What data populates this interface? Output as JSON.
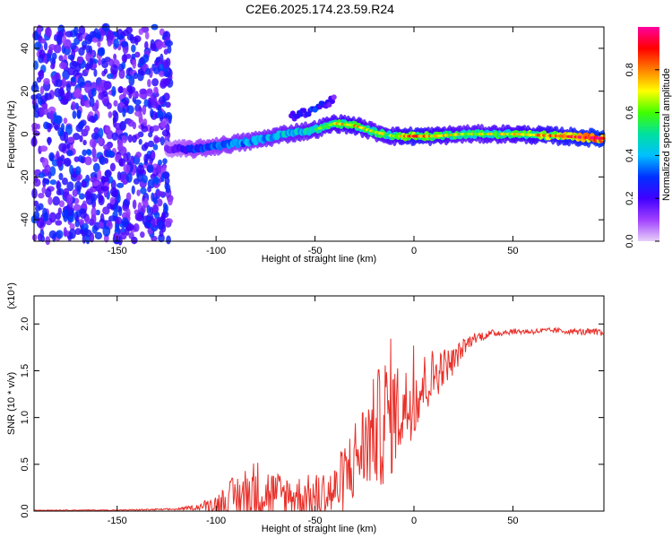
{
  "title": "C2E6.2025.174.23.59.R24",
  "chart_data": [
    {
      "type": "heatmap",
      "xlabel": "Height of straight line (km)",
      "ylabel": "Frequency (Hz)",
      "xlim": [
        -192,
        96
      ],
      "ylim": [
        -50,
        50
      ],
      "xticks": [
        -150,
        -100,
        -50,
        0,
        50
      ],
      "yticks": [
        -40,
        -20,
        0,
        20,
        40
      ],
      "colorbar": {
        "label": "Normalized spectral amplitude",
        "range": [
          0.0,
          1.0
        ],
        "ticks": [
          "0.0",
          "0.2",
          "0.4",
          "0.6",
          "0.8"
        ],
        "colors": [
          "#e8d0f8",
          "#a040ff",
          "#4000ff",
          "#0030ff",
          "#00c0ff",
          "#00e0a0",
          "#40ff00",
          "#ffff00",
          "#ff8000",
          "#ff0000",
          "#ff00a0"
        ]
      },
      "ridge": {
        "x": [
          -125,
          -110,
          -95,
          -80,
          -65,
          -50,
          -40,
          -30,
          -20,
          -10,
          0,
          10,
          25,
          50,
          75,
          95
        ],
        "y": [
          -7,
          -7,
          -5,
          -3,
          0,
          2,
          5,
          4,
          1,
          -1,
          -1,
          -1,
          0,
          0,
          -1,
          -2
        ],
        "amplitude": [
          0.15,
          0.3,
          0.35,
          0.4,
          0.45,
          0.5,
          0.55,
          0.6,
          0.5,
          0.55,
          0.7,
          0.6,
          0.5,
          0.55,
          0.7,
          0.85
        ]
      },
      "secondary_ridge": {
        "x": [
          -62,
          -55,
          -50,
          -45,
          -40
        ],
        "y": [
          8,
          10,
          12,
          14,
          16
        ],
        "amplitude": [
          0.2,
          0.25,
          0.3,
          0.25,
          0.2
        ]
      },
      "noise_region": {
        "x": [
          -192,
          -115
        ],
        "density": "high"
      }
    },
    {
      "type": "line",
      "xlabel": "Height of straight line (km)",
      "ylabel": "SNR (10 * v/v)",
      "y_multiplier": "(x10⁴)",
      "xlim": [
        -192,
        96
      ],
      "ylim": [
        0,
        2.3
      ],
      "xticks": [
        -150,
        -100,
        -50,
        0,
        50
      ],
      "yticks": [
        "0.0",
        "0.5",
        "1.0",
        "1.5",
        "2.0"
      ],
      "color": "#e8302a",
      "series": [
        {
          "envelope_x": [
            -192,
            -150,
            -120,
            -110,
            -100,
            -90,
            -80,
            -70,
            -60,
            -50,
            -40,
            -35,
            -30,
            -25,
            -20,
            -15,
            -12,
            -10,
            -5,
            0,
            5,
            10,
            15,
            20,
            25,
            30,
            40,
            50,
            60,
            70,
            80,
            90,
            96
          ],
          "envelope_y": [
            0.01,
            0.01,
            0.02,
            0.04,
            0.08,
            0.15,
            0.22,
            0.18,
            0.16,
            0.15,
            0.2,
            0.35,
            0.55,
            0.7,
            0.85,
            0.95,
            1.1,
            1.05,
            1.1,
            1.2,
            1.35,
            1.45,
            1.55,
            1.6,
            1.75,
            1.85,
            1.9,
            1.92,
            1.92,
            1.93,
            1.92,
            1.91,
            1.9
          ],
          "noise_amp": [
            0.005,
            0.005,
            0.01,
            0.03,
            0.1,
            0.25,
            0.35,
            0.25,
            0.22,
            0.25,
            0.3,
            0.4,
            0.45,
            0.5,
            0.6,
            0.7,
            0.8,
            0.6,
            0.45,
            0.4,
            0.35,
            0.3,
            0.2,
            0.15,
            0.1,
            0.06,
            0.04,
            0.03,
            0.03,
            0.03,
            0.03,
            0.04,
            0.05
          ]
        }
      ]
    }
  ]
}
